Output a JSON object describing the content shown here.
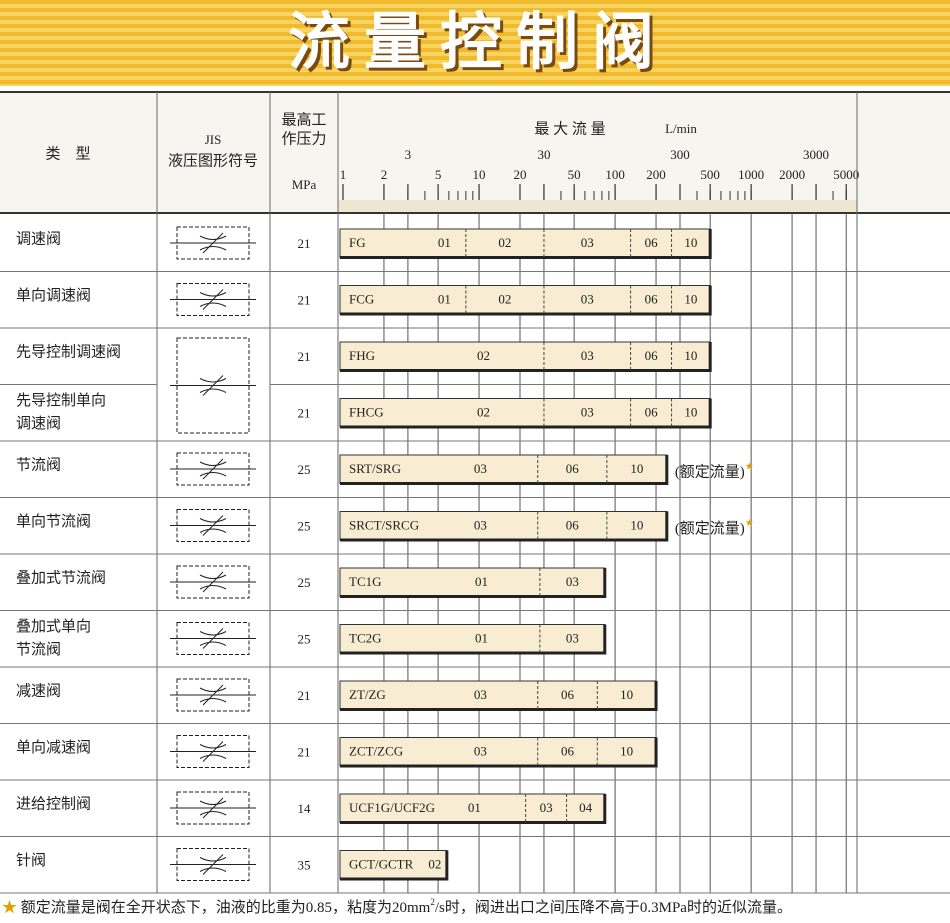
{
  "header": {
    "title": "流量控制阀"
  },
  "table": {
    "columns": {
      "type": "类　型",
      "jis": [
        "JIS",
        "液压图形符号"
      ],
      "pressure": [
        "最高工",
        "作压力"
      ],
      "pressure_unit": "MPa",
      "flow": "最 大 流 量",
      "flow_unit": "L/min"
    },
    "flow_scale": {
      "xlim": [
        1,
        6000
      ],
      "ticks": [
        1,
        2,
        3,
        5,
        10,
        20,
        30,
        50,
        100,
        200,
        300,
        500,
        1000,
        2000,
        3000,
        5000
      ],
      "log": true,
      "grid": true
    },
    "rows": [
      {
        "name": [
          "调速阀"
        ],
        "pressure": 21,
        "series": "FG",
        "segments": [
          {
            "label": "01",
            "end": 8
          },
          {
            "label": "02",
            "end": 30
          },
          {
            "label": "03",
            "end": 130
          },
          {
            "label": "06",
            "end": 260
          },
          {
            "label": "10",
            "end": 500
          }
        ]
      },
      {
        "name": [
          "单向调速阀"
        ],
        "pressure": 21,
        "series": "FCG",
        "segments": [
          {
            "label": "01",
            "end": 8
          },
          {
            "label": "02",
            "end": 30
          },
          {
            "label": "03",
            "end": 130
          },
          {
            "label": "06",
            "end": 260
          },
          {
            "label": "10",
            "end": 500
          }
        ]
      },
      {
        "name": [
          "先导控制调速阀"
        ],
        "pressure": 21,
        "series": "FHG",
        "segments": [
          {
            "label": "02",
            "end": 30
          },
          {
            "label": "03",
            "end": 130
          },
          {
            "label": "06",
            "end": 260
          },
          {
            "label": "10",
            "end": 500
          }
        ]
      },
      {
        "name": [
          "先导控制单向",
          "调速阀"
        ],
        "pressure": 21,
        "series": "FHCG",
        "segments": [
          {
            "label": "02",
            "end": 30
          },
          {
            "label": "03",
            "end": 130
          },
          {
            "label": "06",
            "end": 260
          },
          {
            "label": "10",
            "end": 500
          }
        ]
      },
      {
        "name": [
          "节流阀"
        ],
        "pressure": 25,
        "series": "SRT/SRG",
        "segments": [
          {
            "label": "03",
            "end": 27
          },
          {
            "label": "06",
            "end": 87
          },
          {
            "label": "10",
            "end": 240
          }
        ],
        "note": "(额定流量)",
        "note_mark": "★"
      },
      {
        "name": [
          "单向节流阀"
        ],
        "pressure": 25,
        "series": "SRCT/SRCG",
        "segments": [
          {
            "label": "03",
            "end": 27
          },
          {
            "label": "06",
            "end": 87
          },
          {
            "label": "10",
            "end": 240
          }
        ],
        "note": "(额定流量)",
        "note_mark": "★"
      },
      {
        "name": [
          "叠加式节流阀"
        ],
        "pressure": 25,
        "series": "TC1G",
        "segments": [
          {
            "label": "01",
            "end": 28
          },
          {
            "label": "03",
            "end": 84
          }
        ]
      },
      {
        "name": [
          "叠加式单向",
          "节流阀"
        ],
        "pressure": 25,
        "series": "TC2G",
        "segments": [
          {
            "label": "01",
            "end": 28
          },
          {
            "label": "03",
            "end": 84
          }
        ]
      },
      {
        "name": [
          "减速阀"
        ],
        "pressure": 21,
        "series": "ZT/ZG",
        "segments": [
          {
            "label": "03",
            "end": 27
          },
          {
            "label": "06",
            "end": 74
          },
          {
            "label": "10",
            "end": 200
          }
        ]
      },
      {
        "name": [
          "单向减速阀"
        ],
        "pressure": 21,
        "series": "ZCT/ZCG",
        "segments": [
          {
            "label": "03",
            "end": 27
          },
          {
            "label": "06",
            "end": 74
          },
          {
            "label": "10",
            "end": 200
          }
        ]
      },
      {
        "name": [
          "进给控制阀"
        ],
        "pressure": 14,
        "series": "UCF1G/UCF2G",
        "segments": [
          {
            "label": "01",
            "end": 22
          },
          {
            "label": "03",
            "end": 44
          },
          {
            "label": "04",
            "end": 84
          }
        ]
      },
      {
        "name": [
          "针阀"
        ],
        "pressure": 35,
        "series": "GCT/GCTR",
        "segments": [
          {
            "label": "02",
            "end": 5.8
          }
        ]
      }
    ]
  },
  "footnote": {
    "star": "★",
    "text_1": "额定流量是阀在全开状态下，油液的比重为0.85，粘度为20mm",
    "sup": "2",
    "text_2": "/s时，阀进出口之间压降不高于0.3MPa时的近似流量。"
  }
}
